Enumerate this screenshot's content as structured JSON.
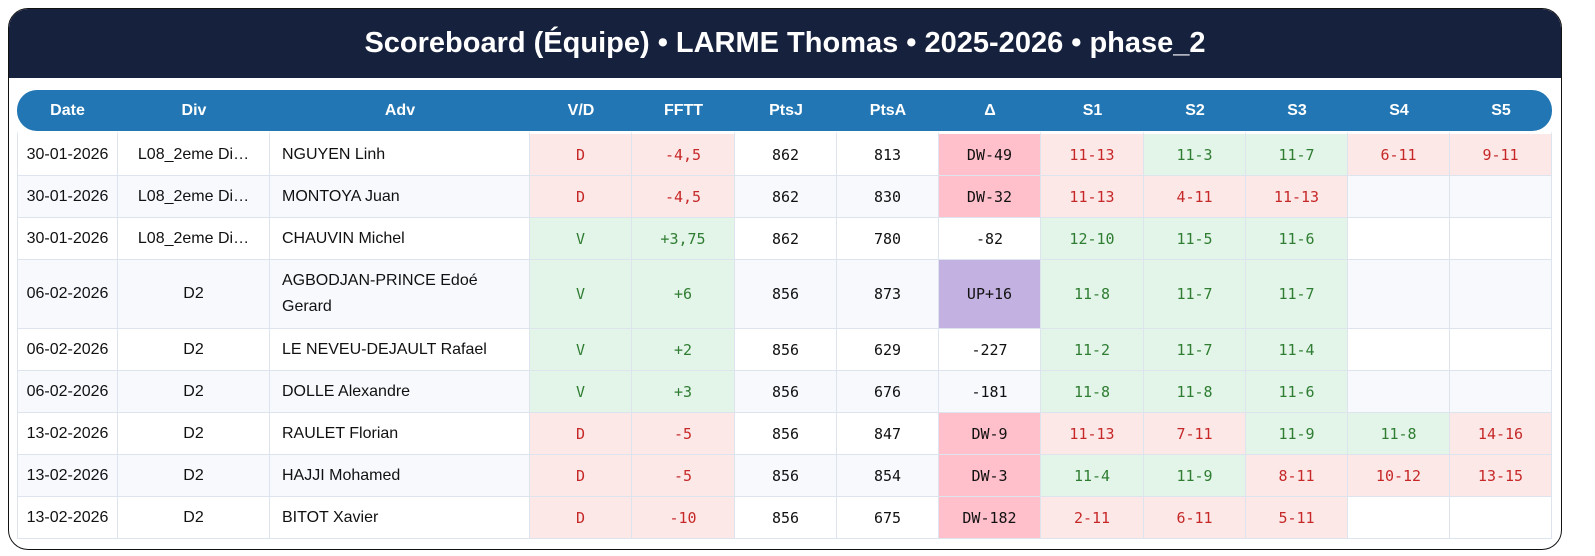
{
  "title": "Scoreboard (Équipe) • LARME Thomas • 2025-2026 • phase_2",
  "colors": {
    "header_bg": "#16213e",
    "table_header_bg": "#2176b3",
    "loss_bg": "#fde8e8",
    "loss_text": "#c62828",
    "win_bg": "#e3f4e8",
    "win_text": "#2e7d32",
    "down_bg": "#ffc0cb",
    "up_bg": "#c3b1e1"
  },
  "columns": [
    "Date",
    "Div",
    "Adv",
    "V/D",
    "FFTT",
    "PtsJ",
    "PtsA",
    "Δ",
    "S1",
    "S2",
    "S3",
    "S4",
    "S5"
  ],
  "rows": [
    {
      "date": "30-01-2026",
      "div": "L08_2eme Di…",
      "adv": "NGUYEN Linh",
      "vd": "D",
      "fftt": "-4,5",
      "ptsj": "862",
      "ptsa": "813",
      "delta": "DW-49",
      "sets": [
        "11-13",
        "11-3",
        "11-7",
        "6-11",
        "9-11"
      ]
    },
    {
      "date": "30-01-2026",
      "div": "L08_2eme Di…",
      "adv": "MONTOYA Juan",
      "vd": "D",
      "fftt": "-4,5",
      "ptsj": "862",
      "ptsa": "830",
      "delta": "DW-32",
      "sets": [
        "11-13",
        "4-11",
        "11-13",
        "",
        ""
      ]
    },
    {
      "date": "30-01-2026",
      "div": "L08_2eme Di…",
      "adv": "CHAUVIN Michel",
      "vd": "V",
      "fftt": "+3,75",
      "ptsj": "862",
      "ptsa": "780",
      "delta": "-82",
      "sets": [
        "12-10",
        "11-5",
        "11-6",
        "",
        ""
      ]
    },
    {
      "date": "06-02-2026",
      "div": "D2",
      "adv": "AGBODJAN-PRINCE Edoé Gerard",
      "vd": "V",
      "fftt": "+6",
      "ptsj": "856",
      "ptsa": "873",
      "delta": "UP+16",
      "sets": [
        "11-8",
        "11-7",
        "11-7",
        "",
        ""
      ]
    },
    {
      "date": "06-02-2026",
      "div": "D2",
      "adv": "LE NEVEU-DEJAULT Rafael",
      "vd": "V",
      "fftt": "+2",
      "ptsj": "856",
      "ptsa": "629",
      "delta": "-227",
      "sets": [
        "11-2",
        "11-7",
        "11-4",
        "",
        ""
      ]
    },
    {
      "date": "06-02-2026",
      "div": "D2",
      "adv": "DOLLE Alexandre",
      "vd": "V",
      "fftt": "+3",
      "ptsj": "856",
      "ptsa": "676",
      "delta": "-181",
      "sets": [
        "11-8",
        "11-8",
        "11-6",
        "",
        ""
      ]
    },
    {
      "date": "13-02-2026",
      "div": "D2",
      "adv": "RAULET Florian",
      "vd": "D",
      "fftt": "-5",
      "ptsj": "856",
      "ptsa": "847",
      "delta": "DW-9",
      "sets": [
        "11-13",
        "7-11",
        "11-9",
        "11-8",
        "14-16"
      ]
    },
    {
      "date": "13-02-2026",
      "div": "D2",
      "adv": "HAJJI Mohamed",
      "vd": "D",
      "fftt": "-5",
      "ptsj": "856",
      "ptsa": "854",
      "delta": "DW-3",
      "sets": [
        "11-4",
        "11-9",
        "8-11",
        "10-12",
        "13-15"
      ]
    },
    {
      "date": "13-02-2026",
      "div": "D2",
      "adv": "BITOT Xavier",
      "vd": "D",
      "fftt": "-10",
      "ptsj": "856",
      "ptsa": "675",
      "delta": "DW-182",
      "sets": [
        "2-11",
        "6-11",
        "5-11",
        "",
        ""
      ]
    }
  ]
}
